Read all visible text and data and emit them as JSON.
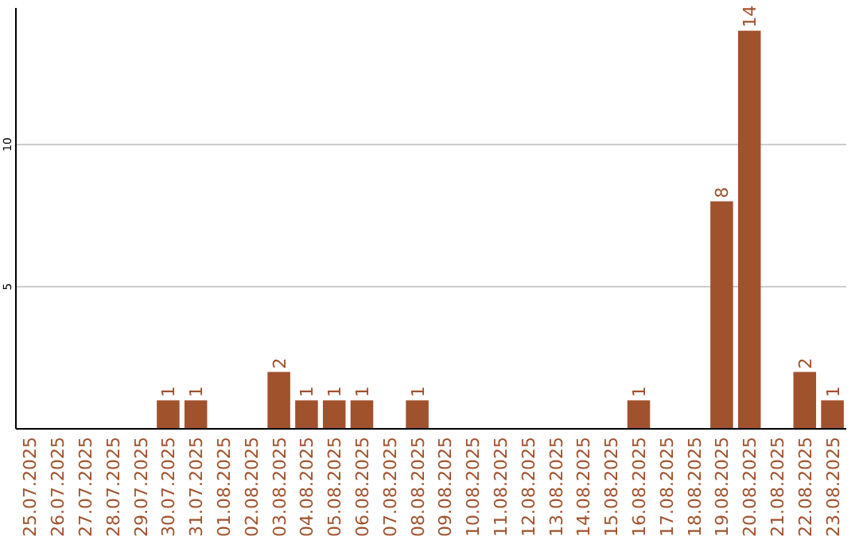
{
  "chart_data": {
    "type": "bar",
    "categories": [
      "25.07.2025",
      "26.07.2025",
      "27.07.2025",
      "28.07.2025",
      "29.07.2025",
      "30.07.2025",
      "31.07.2025",
      "01.08.2025",
      "02.08.2025",
      "03.08.2025",
      "04.08.2025",
      "05.08.2025",
      "06.08.2025",
      "07.08.2025",
      "08.08.2025",
      "09.08.2025",
      "10.08.2025",
      "11.08.2025",
      "12.08.2025",
      "13.08.2025",
      "14.08.2025",
      "15.08.2025",
      "16.08.2025",
      "17.08.2025",
      "18.08.2025",
      "19.08.2025",
      "20.08.2025",
      "21.08.2025",
      "22.08.2025",
      "23.08.2025"
    ],
    "values": [
      0,
      0,
      0,
      0,
      0,
      1,
      1,
      0,
      0,
      2,
      1,
      1,
      1,
      0,
      1,
      0,
      0,
      0,
      0,
      0,
      0,
      0,
      1,
      0,
      0,
      8,
      14,
      0,
      2,
      1
    ],
    "value_labels": [
      null,
      null,
      null,
      null,
      null,
      "1",
      "1",
      null,
      null,
      "2",
      "1",
      "1",
      "1",
      null,
      "1",
      null,
      null,
      null,
      null,
      null,
      null,
      null,
      "1",
      null,
      null,
      "8",
      "14",
      null,
      "2",
      "1"
    ],
    "color": "#a0522d",
    "ylim": [
      0,
      14.8
    ],
    "yticks": [
      5,
      10
    ],
    "grid": "y"
  }
}
